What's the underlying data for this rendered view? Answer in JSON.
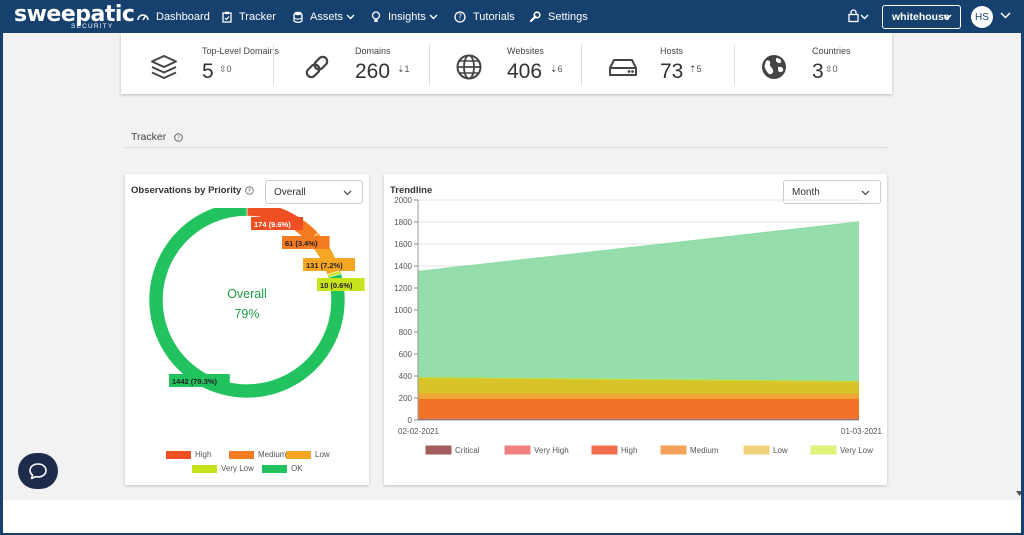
{
  "brand": {
    "name": "sweepatic",
    "sub": "SECURITY"
  },
  "nav": {
    "items": [
      {
        "label": "Dashboard",
        "icon": "dashboard-icon",
        "dropdown": false
      },
      {
        "label": "Tracker",
        "icon": "clipboard-icon",
        "dropdown": false
      },
      {
        "label": "Assets",
        "icon": "database-icon",
        "dropdown": true
      },
      {
        "label": "Insights",
        "icon": "lightbulb-icon",
        "dropdown": true
      },
      {
        "label": "Tutorials",
        "icon": "question-circle-icon",
        "dropdown": false
      },
      {
        "label": "Settings",
        "icon": "wrench-icon",
        "dropdown": false
      }
    ],
    "org": "whitehouse",
    "avatar": "HS"
  },
  "stats": [
    {
      "label": "Top-Level Domains",
      "value": "5",
      "delta": "0",
      "icon": "layers-icon",
      "trend": "neutral"
    },
    {
      "label": "Domains",
      "value": "260",
      "delta": "1",
      "icon": "link-icon",
      "trend": "down"
    },
    {
      "label": "Websites",
      "value": "406",
      "delta": "6",
      "icon": "globe-icon",
      "trend": "down"
    },
    {
      "label": "Hosts",
      "value": "73",
      "delta": "5",
      "icon": "server-icon",
      "trend": "up"
    },
    {
      "label": "Countries",
      "value": "3",
      "delta": "0",
      "icon": "earth-icon",
      "trend": "neutral"
    }
  ],
  "tracker": {
    "title": "Tracker"
  },
  "observations": {
    "title": "Observations by Priority",
    "filter": "Overall",
    "center_label": "Overall",
    "center_value": "79%",
    "legend": [
      {
        "label": "High",
        "color": "#f04e23"
      },
      {
        "label": "Medium",
        "color": "#f47b20"
      },
      {
        "label": "Low",
        "color": "#f5a623"
      },
      {
        "label": "Very Low",
        "color": "#c7e31b"
      },
      {
        "label": "OK",
        "color": "#22c35e"
      }
    ]
  },
  "trendline": {
    "title": "Trendline",
    "period": "Month",
    "legend": [
      {
        "label": "Critical",
        "color": "#a35d5d"
      },
      {
        "label": "Very High",
        "color": "#f08080"
      },
      {
        "label": "High",
        "color": "#f26d4a"
      },
      {
        "label": "Medium",
        "color": "#f5a15a"
      },
      {
        "label": "Low",
        "color": "#f2d276"
      },
      {
        "label": "Very Low",
        "color": "#dff27a"
      },
      {
        "label": "OK",
        "color": "#8fdca6"
      }
    ]
  },
  "chart_data": [
    {
      "type": "pie",
      "title": "",
      "labels": [
        "High",
        "Medium",
        "Low",
        "Very Low",
        "OK"
      ],
      "values": [
        174,
        61,
        131,
        10,
        1442
      ],
      "data_labels": [
        "174 (9.6%)",
        "61 (3.4%)",
        "131 (7.2%)",
        "10 (0.6%)",
        "1442 (79.3%)"
      ],
      "colors": [
        "#f04e23",
        "#f47b20",
        "#f5a623",
        "#c7e31b",
        "#22c35e"
      ],
      "donut": true
    },
    {
      "type": "area",
      "title": "",
      "x": [
        "02-02-2021",
        "01-03-2021"
      ],
      "ylim": [
        0,
        2000
      ],
      "yticks": [
        0,
        200,
        400,
        600,
        800,
        1000,
        1200,
        1400,
        1600,
        1800,
        2000
      ],
      "stacked": true,
      "grid": true,
      "legend_position": "bottom",
      "series": [
        {
          "name": "Critical",
          "values": [
            15,
            15
          ],
          "color": "#8a3b2a"
        },
        {
          "name": "Very High",
          "values": [
            0,
            0
          ],
          "color": "#f08080"
        },
        {
          "name": "High",
          "values": [
            175,
            175
          ],
          "color": "#ee6a1a"
        },
        {
          "name": "Medium",
          "values": [
            50,
            45
          ],
          "color": "#f0a030"
        },
        {
          "name": "Low",
          "values": [
            140,
            110
          ],
          "color": "#d6c020"
        },
        {
          "name": "Very Low",
          "values": [
            10,
            10
          ],
          "color": "#c8de3a"
        },
        {
          "name": "OK",
          "values": [
            960,
            1445
          ],
          "color": "#8fdca6"
        }
      ]
    }
  ]
}
